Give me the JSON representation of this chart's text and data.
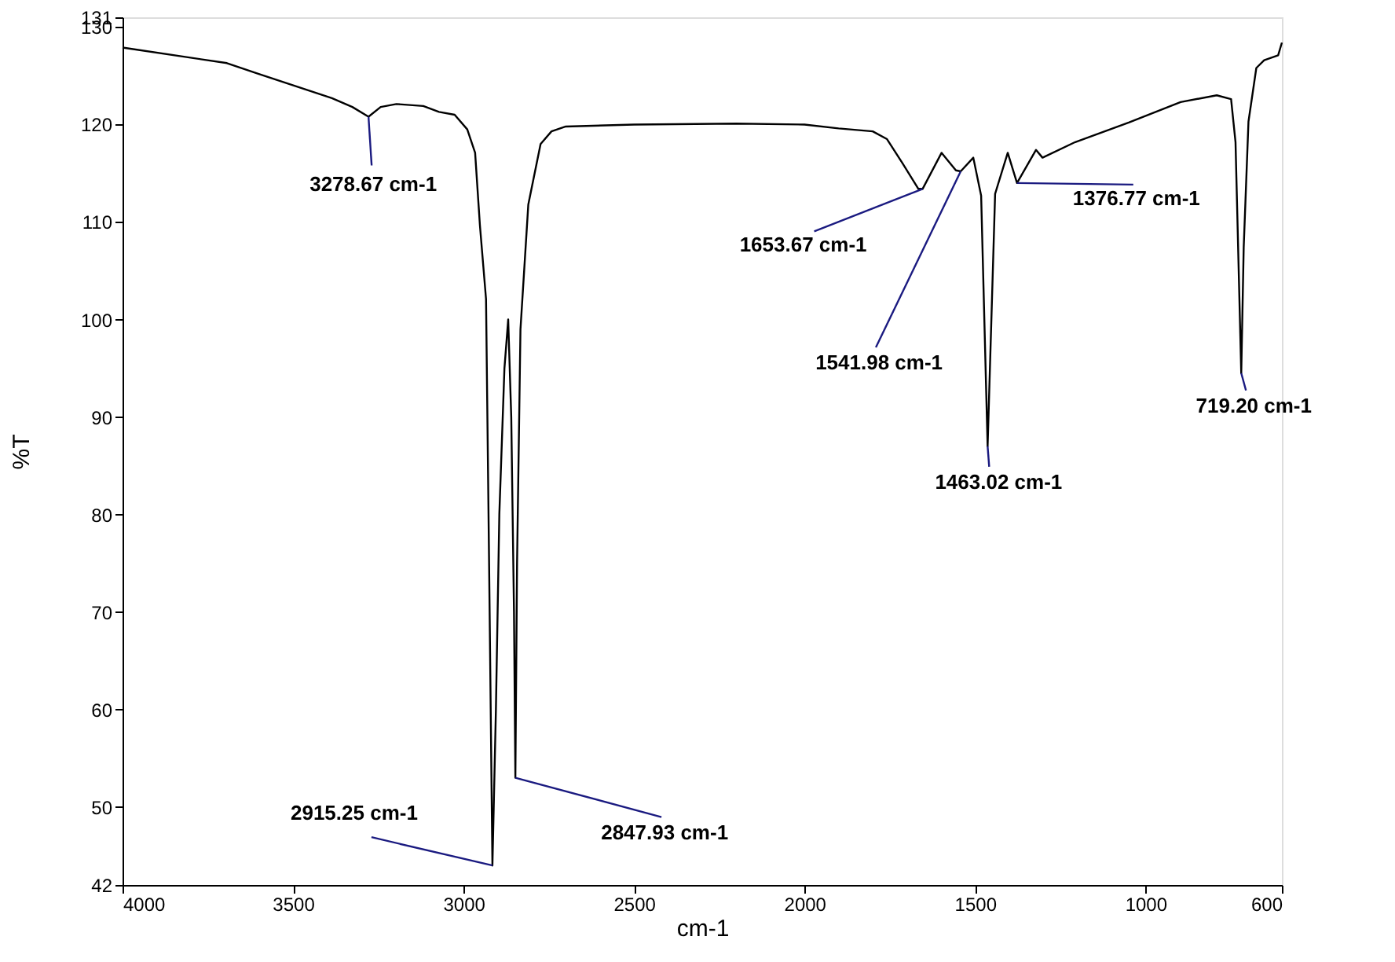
{
  "chart_data": {
    "type": "line",
    "xlabel": "cm-1",
    "ylabel": "%T",
    "color": "#000000",
    "x": [
      4000,
      3694,
      3602,
      3386,
      3326,
      3278.67,
      3243,
      3197,
      3118,
      3072,
      3026,
      2989,
      2966,
      2952,
      2934,
      2925,
      2915.25,
      2905,
      2895,
      2880,
      2869,
      2860,
      2852,
      2847.93,
      2843,
      2833,
      2810,
      2774,
      2742,
      2700,
      2500,
      2200,
      2000,
      1900,
      1800,
      1758,
      1712,
      1666,
      1653.67,
      1598,
      1556,
      1541.98,
      1505,
      1482,
      1463.02,
      1441,
      1404,
      1376.77,
      1321,
      1302,
      1206,
      1049,
      897,
      791,
      749,
      736,
      719.2,
      712,
      698,
      675,
      652,
      611,
      600
    ],
    "values": [
      127.9,
      126.3,
      125.2,
      122.7,
      121.8,
      120.8,
      121.8,
      122.1,
      121.9,
      121.3,
      121.0,
      119.5,
      117.1,
      109.7,
      102.1,
      75,
      44,
      60,
      80,
      95,
      100,
      90,
      70,
      53,
      75,
      99,
      111.8,
      118,
      119.3,
      119.8,
      120.0,
      120.1,
      120.0,
      119.6,
      119.3,
      118.5,
      116,
      113.4,
      113.4,
      117.1,
      115.3,
      115.2,
      116.6,
      112.7,
      87,
      112.9,
      117.1,
      114,
      117.4,
      116.6,
      118.2,
      120.2,
      122.3,
      123,
      122.6,
      118.2,
      94.5,
      107.4,
      120.3,
      125.8,
      126.6,
      127.1,
      128.4
    ],
    "xlim": [
      4000,
      600
    ],
    "xticks": [
      4000,
      3500,
      3000,
      2500,
      2000,
      1500,
      1000,
      600
    ],
    "ylim": [
      42,
      131
    ],
    "yticks": [
      42,
      50,
      60,
      70,
      80,
      90,
      100,
      110,
      120,
      130,
      131
    ],
    "grid": false,
    "annotations": [
      {
        "text": "3278.67 cm-1",
        "x": 3278.67,
        "y": 120.8
      },
      {
        "text": "2915.25 cm-1",
        "x": 2915.25,
        "y": 44
      },
      {
        "text": "2847.93 cm-1",
        "x": 2847.93,
        "y": 53
      },
      {
        "text": "1653.67 cm-1",
        "x": 1653.67,
        "y": 113.4
      },
      {
        "text": "1541.98 cm-1",
        "x": 1541.98,
        "y": 115.2
      },
      {
        "text": "1463.02 cm-1",
        "x": 1463.02,
        "y": 87
      },
      {
        "text": "1376.77 cm-1",
        "x": 1376.77,
        "y": 114
      },
      {
        "text": "719.20 cm-1",
        "x": 719.2,
        "y": 94.5
      }
    ]
  }
}
